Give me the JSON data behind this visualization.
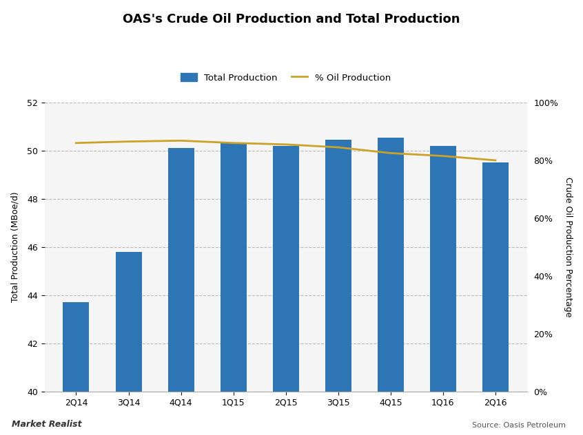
{
  "title": "OAS's Crude Oil Production and Total Production",
  "categories": [
    "2Q14",
    "3Q14",
    "4Q14",
    "1Q15",
    "2Q15",
    "3Q15",
    "4Q15",
    "1Q16",
    "2Q16"
  ],
  "bar_values": [
    43.7,
    45.8,
    50.1,
    50.35,
    50.2,
    50.45,
    50.55,
    50.2,
    49.5
  ],
  "line_values": [
    86.0,
    86.5,
    86.8,
    86.0,
    85.5,
    84.5,
    82.5,
    81.5,
    80.0
  ],
  "bar_color": "#2E75B6",
  "line_color": "#C9A227",
  "ylabel_left": "Total Production (MBoe/d)",
  "ylabel_right": "Crude Oil Production Percentage",
  "ylim_left": [
    40,
    52
  ],
  "ylim_right": [
    0,
    100
  ],
  "yticks_left": [
    40,
    42,
    44,
    46,
    48,
    50,
    52
  ],
  "yticks_right": [
    0,
    20,
    40,
    60,
    80,
    100
  ],
  "legend_bar": "Total Production",
  "legend_line": "% Oil Production",
  "source_text": "Source: Oasis Petroleum",
  "watermark": "Market Realist",
  "fig_background": "#FFFFFF",
  "plot_background": "#F5F5F5",
  "grid_color": "#BBBBBB",
  "title_fontsize": 13,
  "axis_fontsize": 9,
  "tick_fontsize": 9,
  "bar_width": 0.5
}
